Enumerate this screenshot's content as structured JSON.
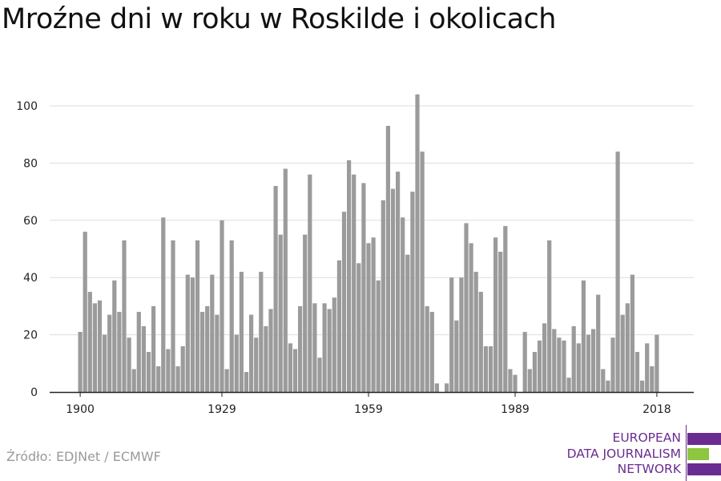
{
  "title": "Mroźne dni w roku w Roskilde i okolicach",
  "source": "Źródło: EDJNet / ECMWF",
  "logo": {
    "lines": [
      "EUROPEAN",
      "DATA JOURNALISM",
      "NETWORK"
    ],
    "colors": {
      "purple": "#6a2c91",
      "green": "#8dc63f"
    }
  },
  "colors": {
    "bar": "#9b9b9b",
    "grid": "#dddddd",
    "axis": "#222222",
    "text": "#222222"
  },
  "chart_data": {
    "type": "bar",
    "title": "Mroźne dni w roku w Roskilde i okolicach",
    "xlabel": "",
    "ylabel": "",
    "ylim": [
      0,
      110
    ],
    "yticks": [
      0,
      20,
      40,
      60,
      80,
      100
    ],
    "xticks": [
      1900,
      1929,
      1959,
      1989,
      2018
    ],
    "grid": "horizontal",
    "x_start": 1900,
    "x_end": 2018,
    "values": [
      21,
      56,
      35,
      31,
      32,
      20,
      27,
      39,
      28,
      53,
      19,
      8,
      28,
      23,
      14,
      30,
      9,
      61,
      15,
      53,
      9,
      16,
      41,
      40,
      53,
      28,
      30,
      41,
      27,
      60,
      8,
      53,
      20,
      42,
      7,
      27,
      19,
      42,
      23,
      29,
      72,
      55,
      78,
      17,
      15,
      30,
      55,
      76,
      31,
      12,
      31,
      29,
      33,
      46,
      63,
      81,
      76,
      45,
      73,
      52,
      54,
      39,
      67,
      93,
      71,
      77,
      61,
      48,
      70,
      104,
      84,
      30,
      28,
      3,
      0,
      3,
      40,
      25,
      40,
      59,
      52,
      42,
      35,
      16,
      16,
      54,
      49,
      58,
      8,
      6,
      0,
      21,
      8,
      14,
      18,
      24,
      53,
      22,
      19,
      18,
      5,
      23,
      17,
      39,
      20,
      22,
      34,
      8,
      4,
      19,
      84,
      27,
      31,
      41,
      14,
      4,
      17,
      9,
      20
    ]
  }
}
